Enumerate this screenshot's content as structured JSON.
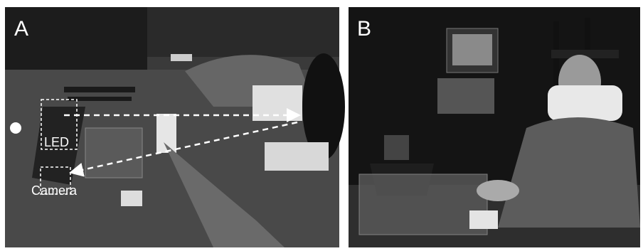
{
  "panels": [
    {
      "label": "A",
      "annotations": [
        "LED",
        "Camera"
      ]
    },
    {
      "label": "B"
    }
  ]
}
